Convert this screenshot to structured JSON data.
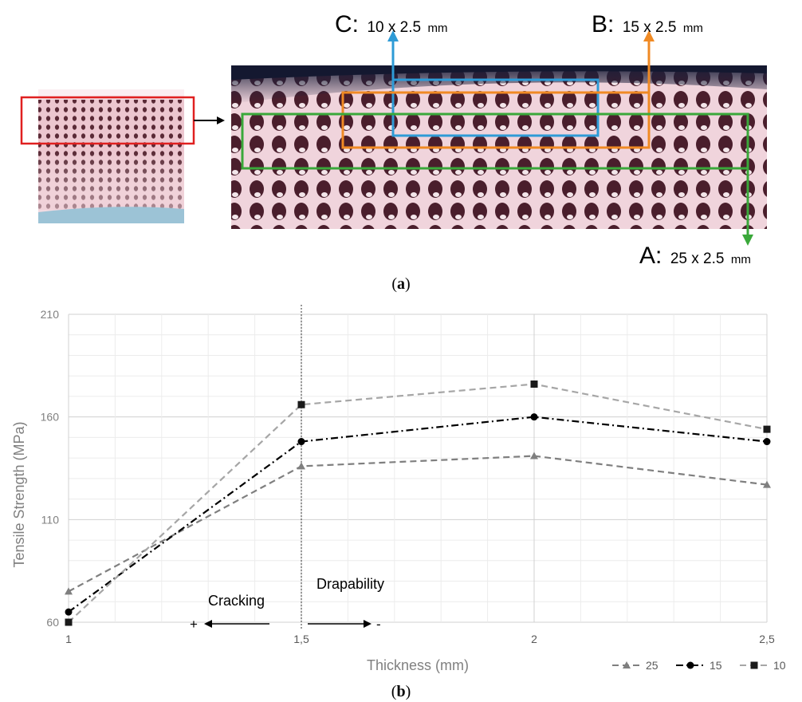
{
  "panel_a": {
    "caption_open": "(",
    "caption_letter": "a",
    "caption_close": ")",
    "regions": [
      {
        "key": "C:",
        "size": "10 x 2.5",
        "unit": "mm",
        "color": "#2e9bd6"
      },
      {
        "key": "B:",
        "size": "15 x 2.5",
        "unit": "mm",
        "color": "#f08a24"
      },
      {
        "key": "A:",
        "size": "25 x 2.5",
        "unit": "mm",
        "color": "#3aa83a"
      }
    ],
    "crop_color": "#e02020"
  },
  "panel_b": {
    "caption_open": "(",
    "caption_letter": "b",
    "caption_close": ")"
  },
  "chart_data": {
    "type": "line",
    "x": [
      1,
      1.5,
      2,
      2.5
    ],
    "x_tick_labels": [
      "1",
      "1,5",
      "2",
      "2,5"
    ],
    "xlabel": "Thickness (mm)",
    "ylabel": "Tensile Strength (MPa)",
    "ylim": [
      60,
      210
    ],
    "y_ticks": [
      60,
      110,
      160,
      210
    ],
    "y_tick_labels": [
      "60",
      "110",
      "160",
      "210"
    ],
    "grid": true,
    "legend_position": "bottom-right",
    "series": [
      {
        "name": "25",
        "marker": "triangle",
        "dash": "dashed",
        "color": "#7f7f7f",
        "values": [
          75,
          136,
          141,
          127
        ]
      },
      {
        "name": "15",
        "marker": "circle",
        "dash": "dash-dot",
        "color": "#000000",
        "values": [
          65,
          148,
          160,
          148
        ]
      },
      {
        "name": "10",
        "marker": "square",
        "dash": "dashed",
        "color": "#a6a6a6",
        "values": [
          60,
          166,
          176,
          154
        ]
      }
    ],
    "vertical_line_x": 1.5,
    "annotations": [
      {
        "text": "Cracking",
        "sign": "+",
        "direction": "left"
      },
      {
        "text": "Drapability",
        "sign": "-",
        "direction": "right"
      }
    ]
  }
}
